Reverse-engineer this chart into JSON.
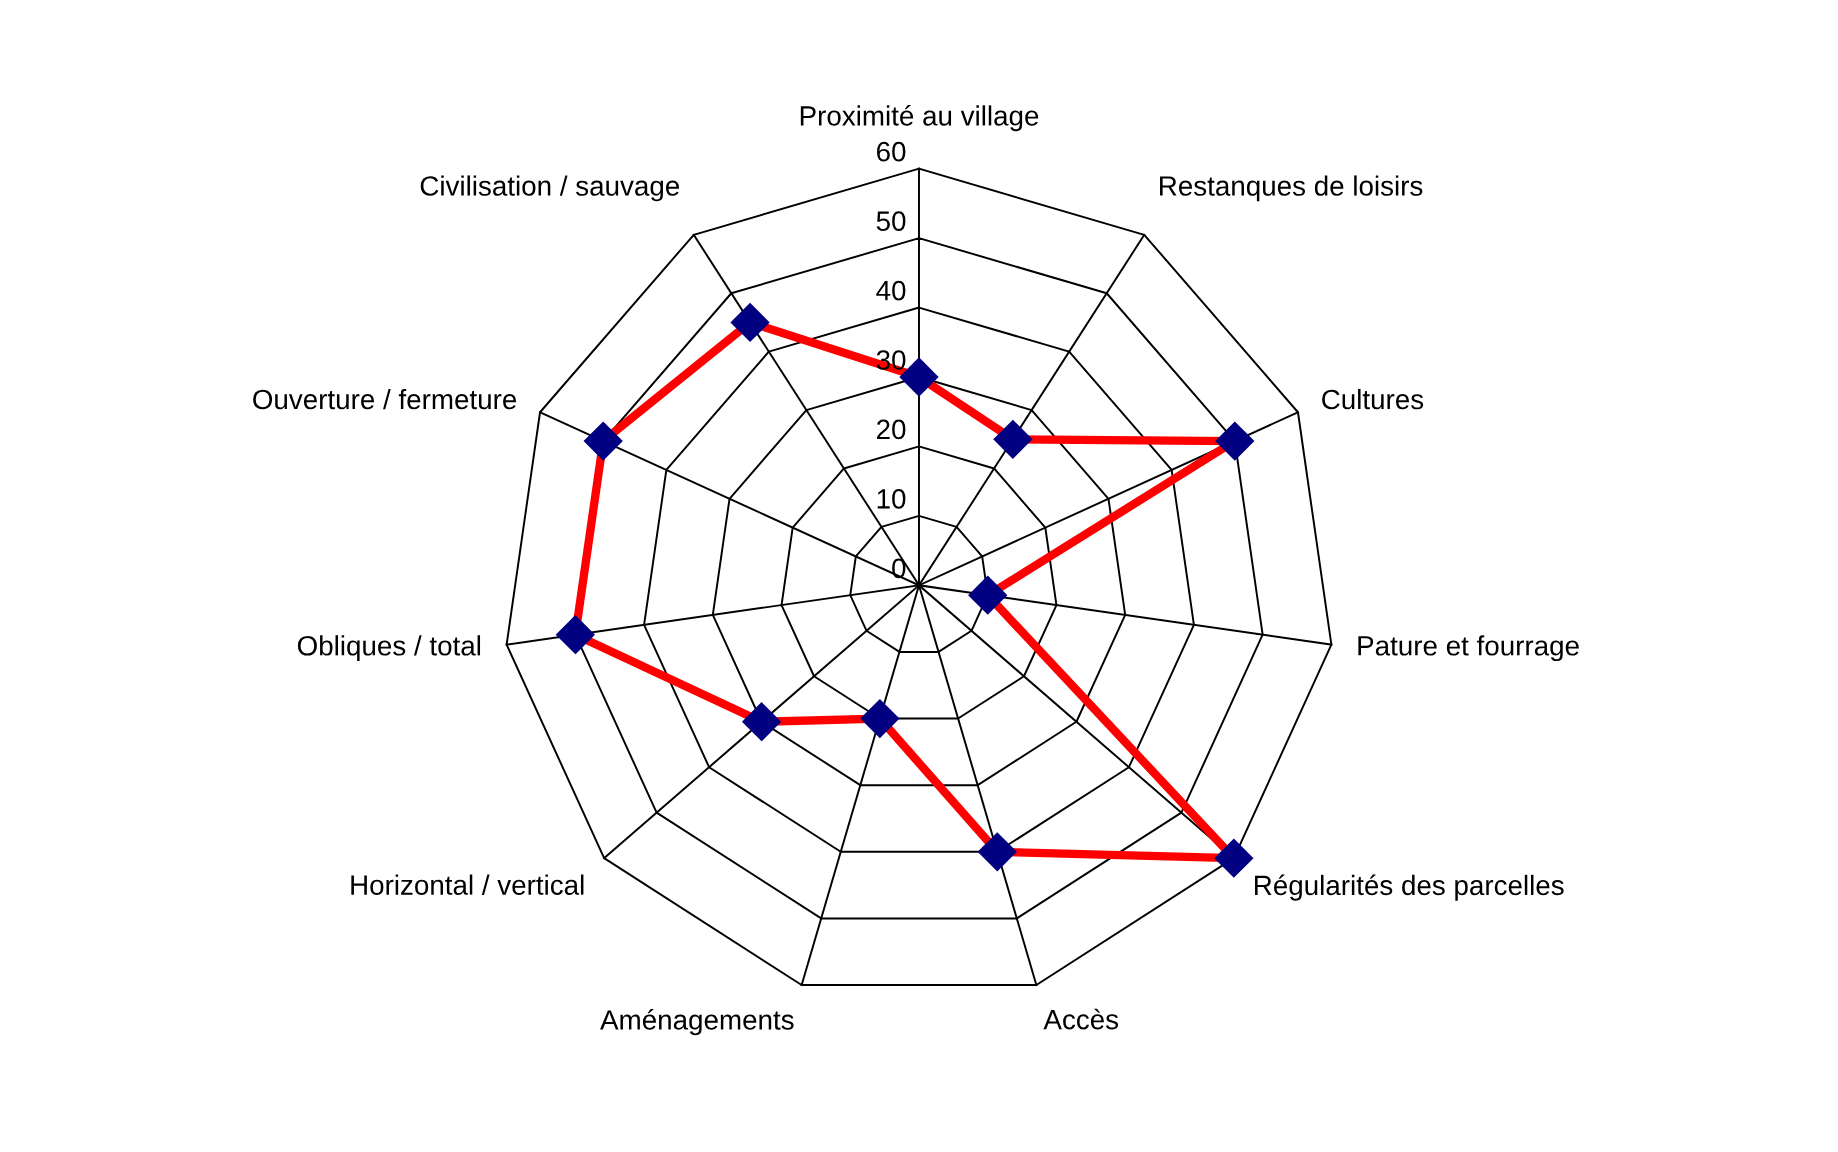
{
  "chart_data": {
    "type": "radar",
    "categories": [
      "Proximité au village",
      "Restanques de loisirs",
      "Cultures",
      "Pature et fourrage",
      "Régularités des parcelles",
      "Accès",
      "Aménagements",
      "Horizontal / vertical",
      "Obliques / total",
      "Ouverture / fermeture",
      "Civilisation / sauvage"
    ],
    "series": [
      {
        "color": "#ff0000",
        "colors": [
          "#000080",
          "#000080",
          "#000080",
          "#000080",
          "#000080",
          "#000080",
          "#000080",
          "#000080",
          "#000080",
          "#000080",
          "#000080"
        ],
        "values": [
          30,
          25,
          50,
          10,
          60,
          40,
          20,
          30,
          50,
          50,
          45
        ]
      }
    ],
    "ylim": [
      0,
      60
    ],
    "yticks": [
      0,
      10,
      20,
      30,
      40,
      50,
      60
    ],
    "marker": "diamond",
    "line_style": "solid",
    "legend": false
  }
}
